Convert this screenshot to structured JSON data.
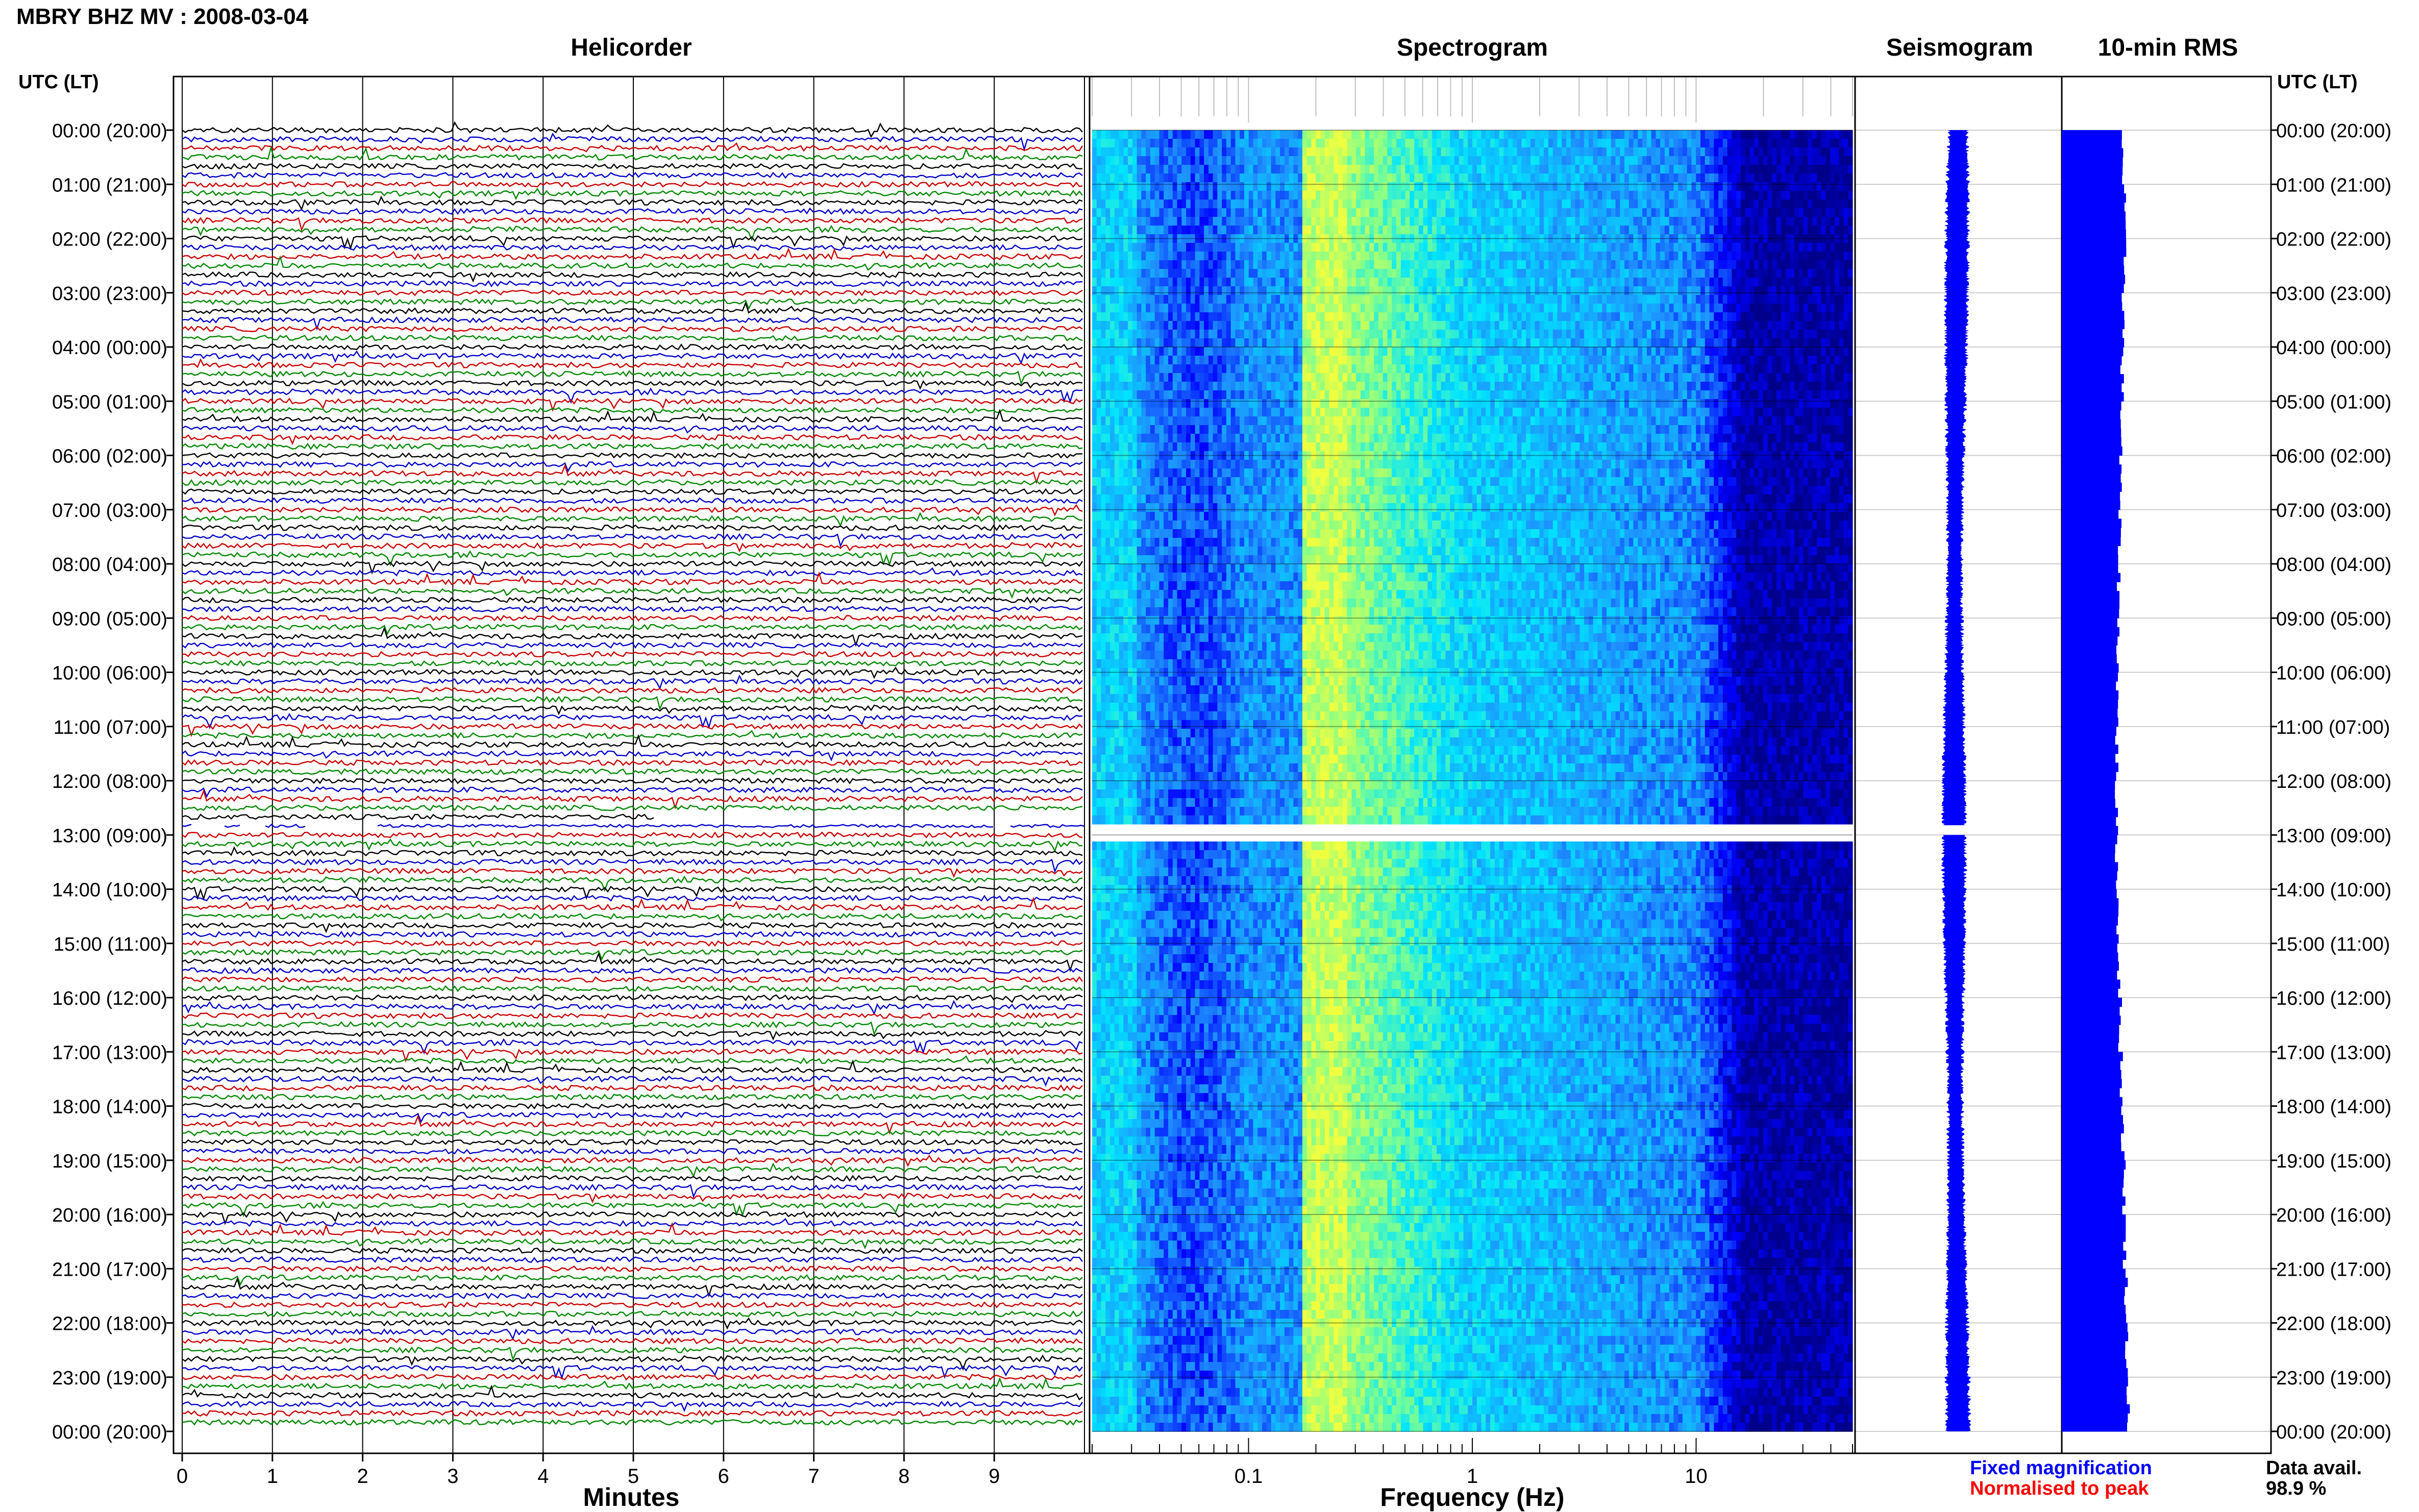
{
  "page_title": "MBRY BHZ MV : 2008-03-04",
  "panels": {
    "helicorder": "Helicorder",
    "spectrogram": "Spectrogram",
    "seismogram": "Seismogram",
    "rms": "10-min RMS"
  },
  "time_axis_label": "UTC (LT)",
  "legend": {
    "fixed": "Fixed magnification",
    "normalised": "Normalised to peak",
    "fixed_color": "#0000ff",
    "normalised_color": "#ff0000"
  },
  "data_avail": {
    "label": "Data avail.",
    "value": "98.9 %"
  },
  "chart_data": [
    {
      "type": "line",
      "panel": "helicorder",
      "xlabel": "Minutes",
      "xlim": [
        0,
        10
      ],
      "x_ticks": [
        "0",
        "1",
        "2",
        "3",
        "4",
        "5",
        "6",
        "7",
        "8",
        "9"
      ],
      "trace_colors": [
        "#000000",
        "#0000cc",
        "#cc0000",
        "#008800"
      ],
      "traces_per_hour": 6,
      "gap": {
        "start_hour": 12.83,
        "end_hour": 13.0
      },
      "y_ticks": [
        "00:00 (20:00)",
        "01:00 (21:00)",
        "02:00 (22:00)",
        "03:00 (23:00)",
        "04:00 (00:00)",
        "05:00 (01:00)",
        "06:00 (02:00)",
        "07:00 (03:00)",
        "08:00 (04:00)",
        "09:00 (05:00)",
        "10:00 (06:00)",
        "11:00 (07:00)",
        "12:00 (08:00)",
        "13:00 (09:00)",
        "14:00 (10:00)",
        "15:00 (11:00)",
        "16:00 (12:00)",
        "17:00 (13:00)",
        "18:00 (14:00)",
        "19:00 (15:00)",
        "20:00 (16:00)",
        "21:00 (17:00)",
        "22:00 (18:00)",
        "23:00 (19:00)",
        "00:00 (20:00)"
      ]
    },
    {
      "type": "heatmap",
      "panel": "spectrogram",
      "xlabel": "Frequency (Hz)",
      "x_scale": "log",
      "xlim": [
        0.02,
        50
      ],
      "x_ticks": [
        "0.1",
        "1",
        "10"
      ],
      "ylim_hours": [
        0,
        24
      ],
      "gap": {
        "start_hour": 12.83,
        "end_hour": 13.0
      },
      "colormap": [
        "#00008b",
        "#0000ff",
        "#1e90ff",
        "#00e5ff",
        "#7fff8e",
        "#f0ff40"
      ]
    },
    {
      "type": "line",
      "panel": "seismogram",
      "gap": {
        "start_hour": 12.83,
        "end_hour": 13.0
      }
    },
    {
      "type": "bar",
      "panel": "rms",
      "orientation": "horizontal",
      "bar_color": "#0000ff",
      "interval_minutes": 10,
      "relative_values": [
        0.92,
        0.94,
        0.95,
        0.93,
        0.91,
        0.9,
        0.88,
        0.87,
        0.86,
        0.85,
        0.84,
        0.83,
        0.82,
        0.83,
        0.85,
        0.86,
        0.88,
        0.9,
        0.92,
        0.94,
        0.95,
        0.97,
        0.98,
        1.0
      ]
    }
  ]
}
